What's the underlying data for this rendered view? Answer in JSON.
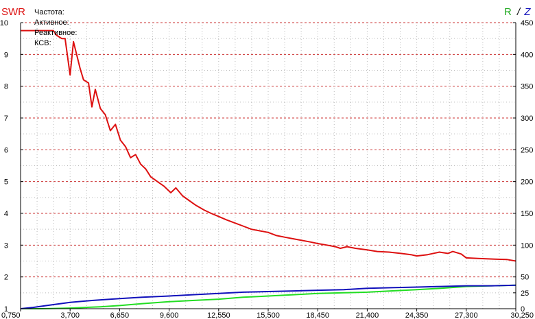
{
  "legend": {
    "title": "SWR",
    "lines": [
      "Частота:",
      "Активное:",
      "Реактивное:",
      "КСВ:"
    ]
  },
  "right_axis_title": {
    "r": "R",
    "sep": "/",
    "z": "Z"
  },
  "colors": {
    "swr": "#dd1010",
    "r": "#22dd22",
    "z": "#1010bb",
    "grid": "#cc3333",
    "axis": "#000000"
  },
  "chart_data": {
    "type": "line",
    "x_ticks": [
      750,
      3700,
      6650,
      9600,
      12550,
      15500,
      18450,
      21400,
      24350,
      27300,
      30250
    ],
    "x_tick_labels": [
      "0,750",
      "3,700",
      "6,650",
      "9,600",
      "12,550",
      "15,500",
      "18,450",
      "21,400",
      "24,350",
      "27,300",
      "30,250"
    ],
    "xlim": [
      750,
      30250
    ],
    "left_ylim": [
      1,
      10
    ],
    "left_y_ticks": [
      1,
      2,
      3,
      4,
      5,
      6,
      7,
      8,
      9,
      10
    ],
    "right_ylim": [
      0,
      450
    ],
    "right_y_ticks": [
      0,
      25,
      50,
      100,
      150,
      200,
      250,
      300,
      350,
      400,
      450
    ],
    "grid": true,
    "series": [
      {
        "key": "swr",
        "axis": "left",
        "x": [
          750,
          1700,
          2300,
          2700,
          2900,
          3200,
          3400,
          3700,
          3900,
          4300,
          4500,
          4800,
          5000,
          5200,
          5500,
          5800,
          6100,
          6400,
          6700,
          7000,
          7300,
          7600,
          7900,
          8200,
          8500,
          8900,
          9300,
          9700,
          10000,
          10400,
          10800,
          11200,
          11700,
          12100,
          12550,
          13000,
          13500,
          14000,
          14500,
          15000,
          15500,
          16000,
          16500,
          17000,
          17500,
          18000,
          18450,
          19000,
          19500,
          19800,
          20200,
          20700,
          21400,
          22000,
          22700,
          23400,
          24000,
          24350,
          25000,
          25700,
          26200,
          26500,
          27000,
          27300,
          28000,
          29000,
          29700,
          30250
        ],
        "values": [
          9.75,
          9.75,
          9.75,
          9.75,
          9.6,
          9.5,
          9.5,
          8.35,
          9.4,
          8.55,
          8.2,
          8.1,
          7.35,
          7.9,
          7.3,
          7.1,
          6.6,
          6.8,
          6.3,
          6.1,
          5.75,
          5.85,
          5.55,
          5.4,
          5.15,
          5.0,
          4.85,
          4.65,
          4.8,
          4.55,
          4.4,
          4.25,
          4.1,
          4.0,
          3.9,
          3.8,
          3.7,
          3.6,
          3.5,
          3.45,
          3.4,
          3.3,
          3.25,
          3.2,
          3.15,
          3.1,
          3.05,
          3.0,
          2.95,
          2.9,
          2.95,
          2.9,
          2.85,
          2.8,
          2.78,
          2.74,
          2.7,
          2.66,
          2.7,
          2.78,
          2.74,
          2.8,
          2.72,
          2.6,
          2.58,
          2.56,
          2.55,
          2.5
        ]
      },
      {
        "key": "r",
        "axis": "right",
        "x": [
          750,
          2000,
          3700,
          5500,
          6650,
          8000,
          9600,
          11000,
          12550,
          14000,
          15500,
          17000,
          18450,
          20000,
          21400,
          22800,
          24350,
          25800,
          27300,
          28800,
          30250
        ],
        "values": [
          0,
          0,
          1,
          3,
          5,
          8,
          11,
          13,
          15,
          18,
          20,
          22,
          24,
          25,
          26,
          28,
          30,
          32,
          35,
          36,
          37
        ]
      },
      {
        "key": "z",
        "axis": "right",
        "x": [
          750,
          1500,
          2300,
          3700,
          5000,
          6650,
          8000,
          9600,
          11000,
          12550,
          14000,
          15500,
          17000,
          18450,
          20000,
          21400,
          22800,
          24350,
          25800,
          27300,
          28800,
          30250
        ],
        "values": [
          0,
          2,
          5,
          10,
          13,
          16,
          18,
          20,
          22,
          24,
          26,
          27,
          28,
          29,
          30,
          32,
          33,
          34,
          35,
          36,
          36,
          37
        ]
      }
    ]
  }
}
